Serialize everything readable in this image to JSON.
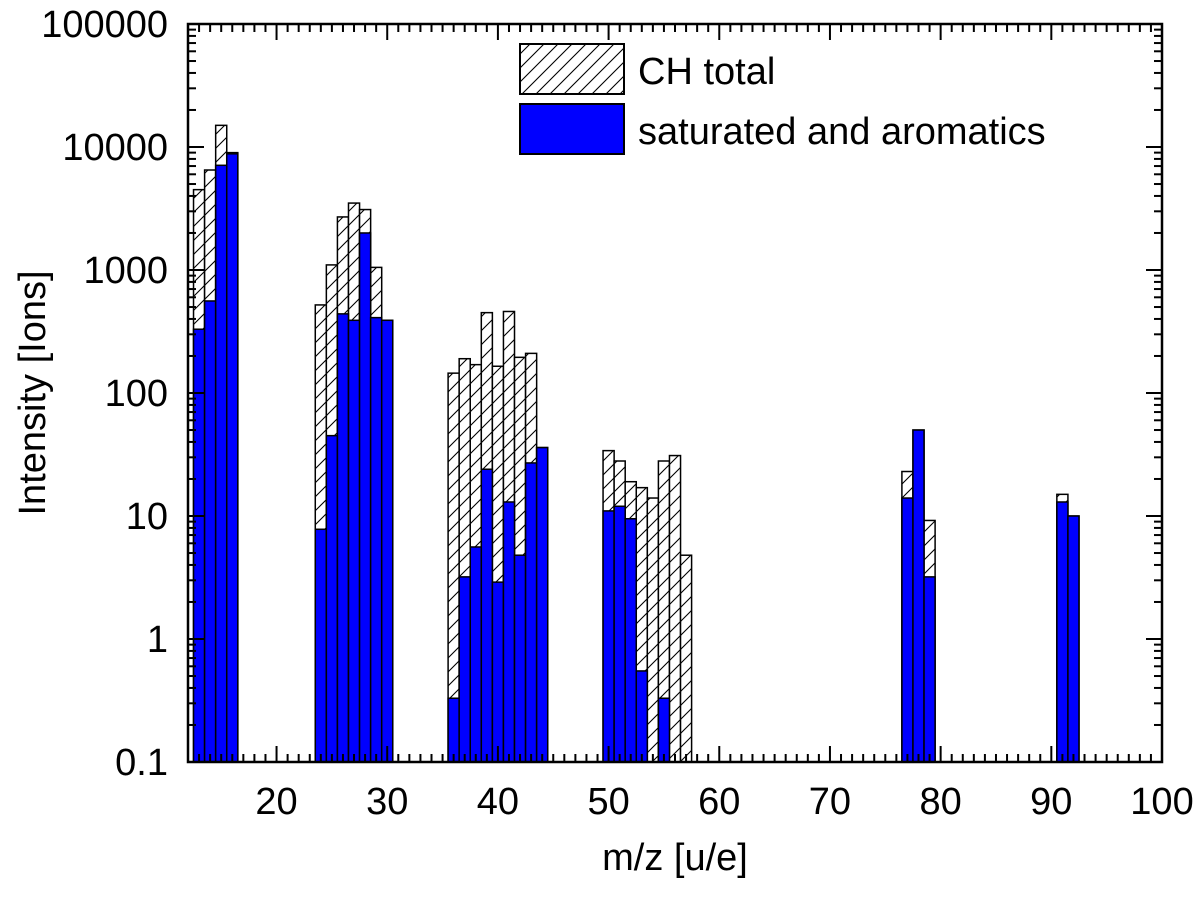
{
  "chart_data": {
    "type": "bar",
    "xlabel": "m/z [u/e]",
    "ylabel": "Intensity [Ions]",
    "x_scale": "linear",
    "y_scale": "log",
    "xlim": [
      12,
      100
    ],
    "ylim": [
      0.1,
      100000
    ],
    "x_ticks": [
      20,
      30,
      40,
      50,
      60,
      70,
      80,
      90,
      100
    ],
    "y_ticks": [
      0.1,
      1,
      10,
      100,
      1000,
      10000,
      100000
    ],
    "y_tick_labels": [
      "0.1",
      "1",
      "10",
      "100",
      "1000",
      "10000",
      "100000"
    ],
    "grid": false,
    "legend_position": "top-right",
    "bar_width": 1,
    "colors": {
      "saturated_and_aromatics": "#0000ff",
      "ch_total_fill": "#ffffff",
      "ch_total_hatch": "#000000"
    },
    "series": [
      {
        "name": "CH total",
        "style": "hatched",
        "x": [
          13,
          14,
          15,
          16,
          24,
          25,
          26,
          27,
          28,
          29,
          30,
          36,
          37,
          38,
          39,
          40,
          41,
          42,
          43,
          44,
          50,
          51,
          52,
          53,
          54,
          55,
          56,
          57,
          77,
          78,
          79,
          91,
          92
        ],
        "values": [
          4500,
          6500,
          15000,
          9000,
          520,
          1100,
          2700,
          3500,
          3100,
          1050,
          390,
          145,
          190,
          170,
          450,
          165,
          460,
          195,
          210,
          36,
          34,
          28,
          19,
          17,
          14,
          28,
          31,
          4.8,
          23,
          50,
          9.2,
          15,
          10
        ]
      },
      {
        "name": "saturated and aromatics",
        "style": "solid",
        "x": [
          13,
          14,
          15,
          16,
          24,
          25,
          26,
          27,
          28,
          29,
          30,
          36,
          37,
          38,
          39,
          40,
          41,
          42,
          43,
          44,
          50,
          51,
          52,
          53,
          55,
          77,
          78,
          79,
          91,
          92
        ],
        "values": [
          330,
          560,
          7100,
          8800,
          7.8,
          45,
          440,
          390,
          2000,
          410,
          390,
          0.33,
          3.2,
          5.6,
          24,
          2.9,
          13,
          4.8,
          27,
          36,
          11,
          12,
          9.5,
          0.55,
          0.33,
          14,
          50,
          3.2,
          13,
          10
        ]
      }
    ]
  },
  "legend": {
    "items": [
      {
        "label": "CH total"
      },
      {
        "label": "saturated and aromatics"
      }
    ]
  }
}
